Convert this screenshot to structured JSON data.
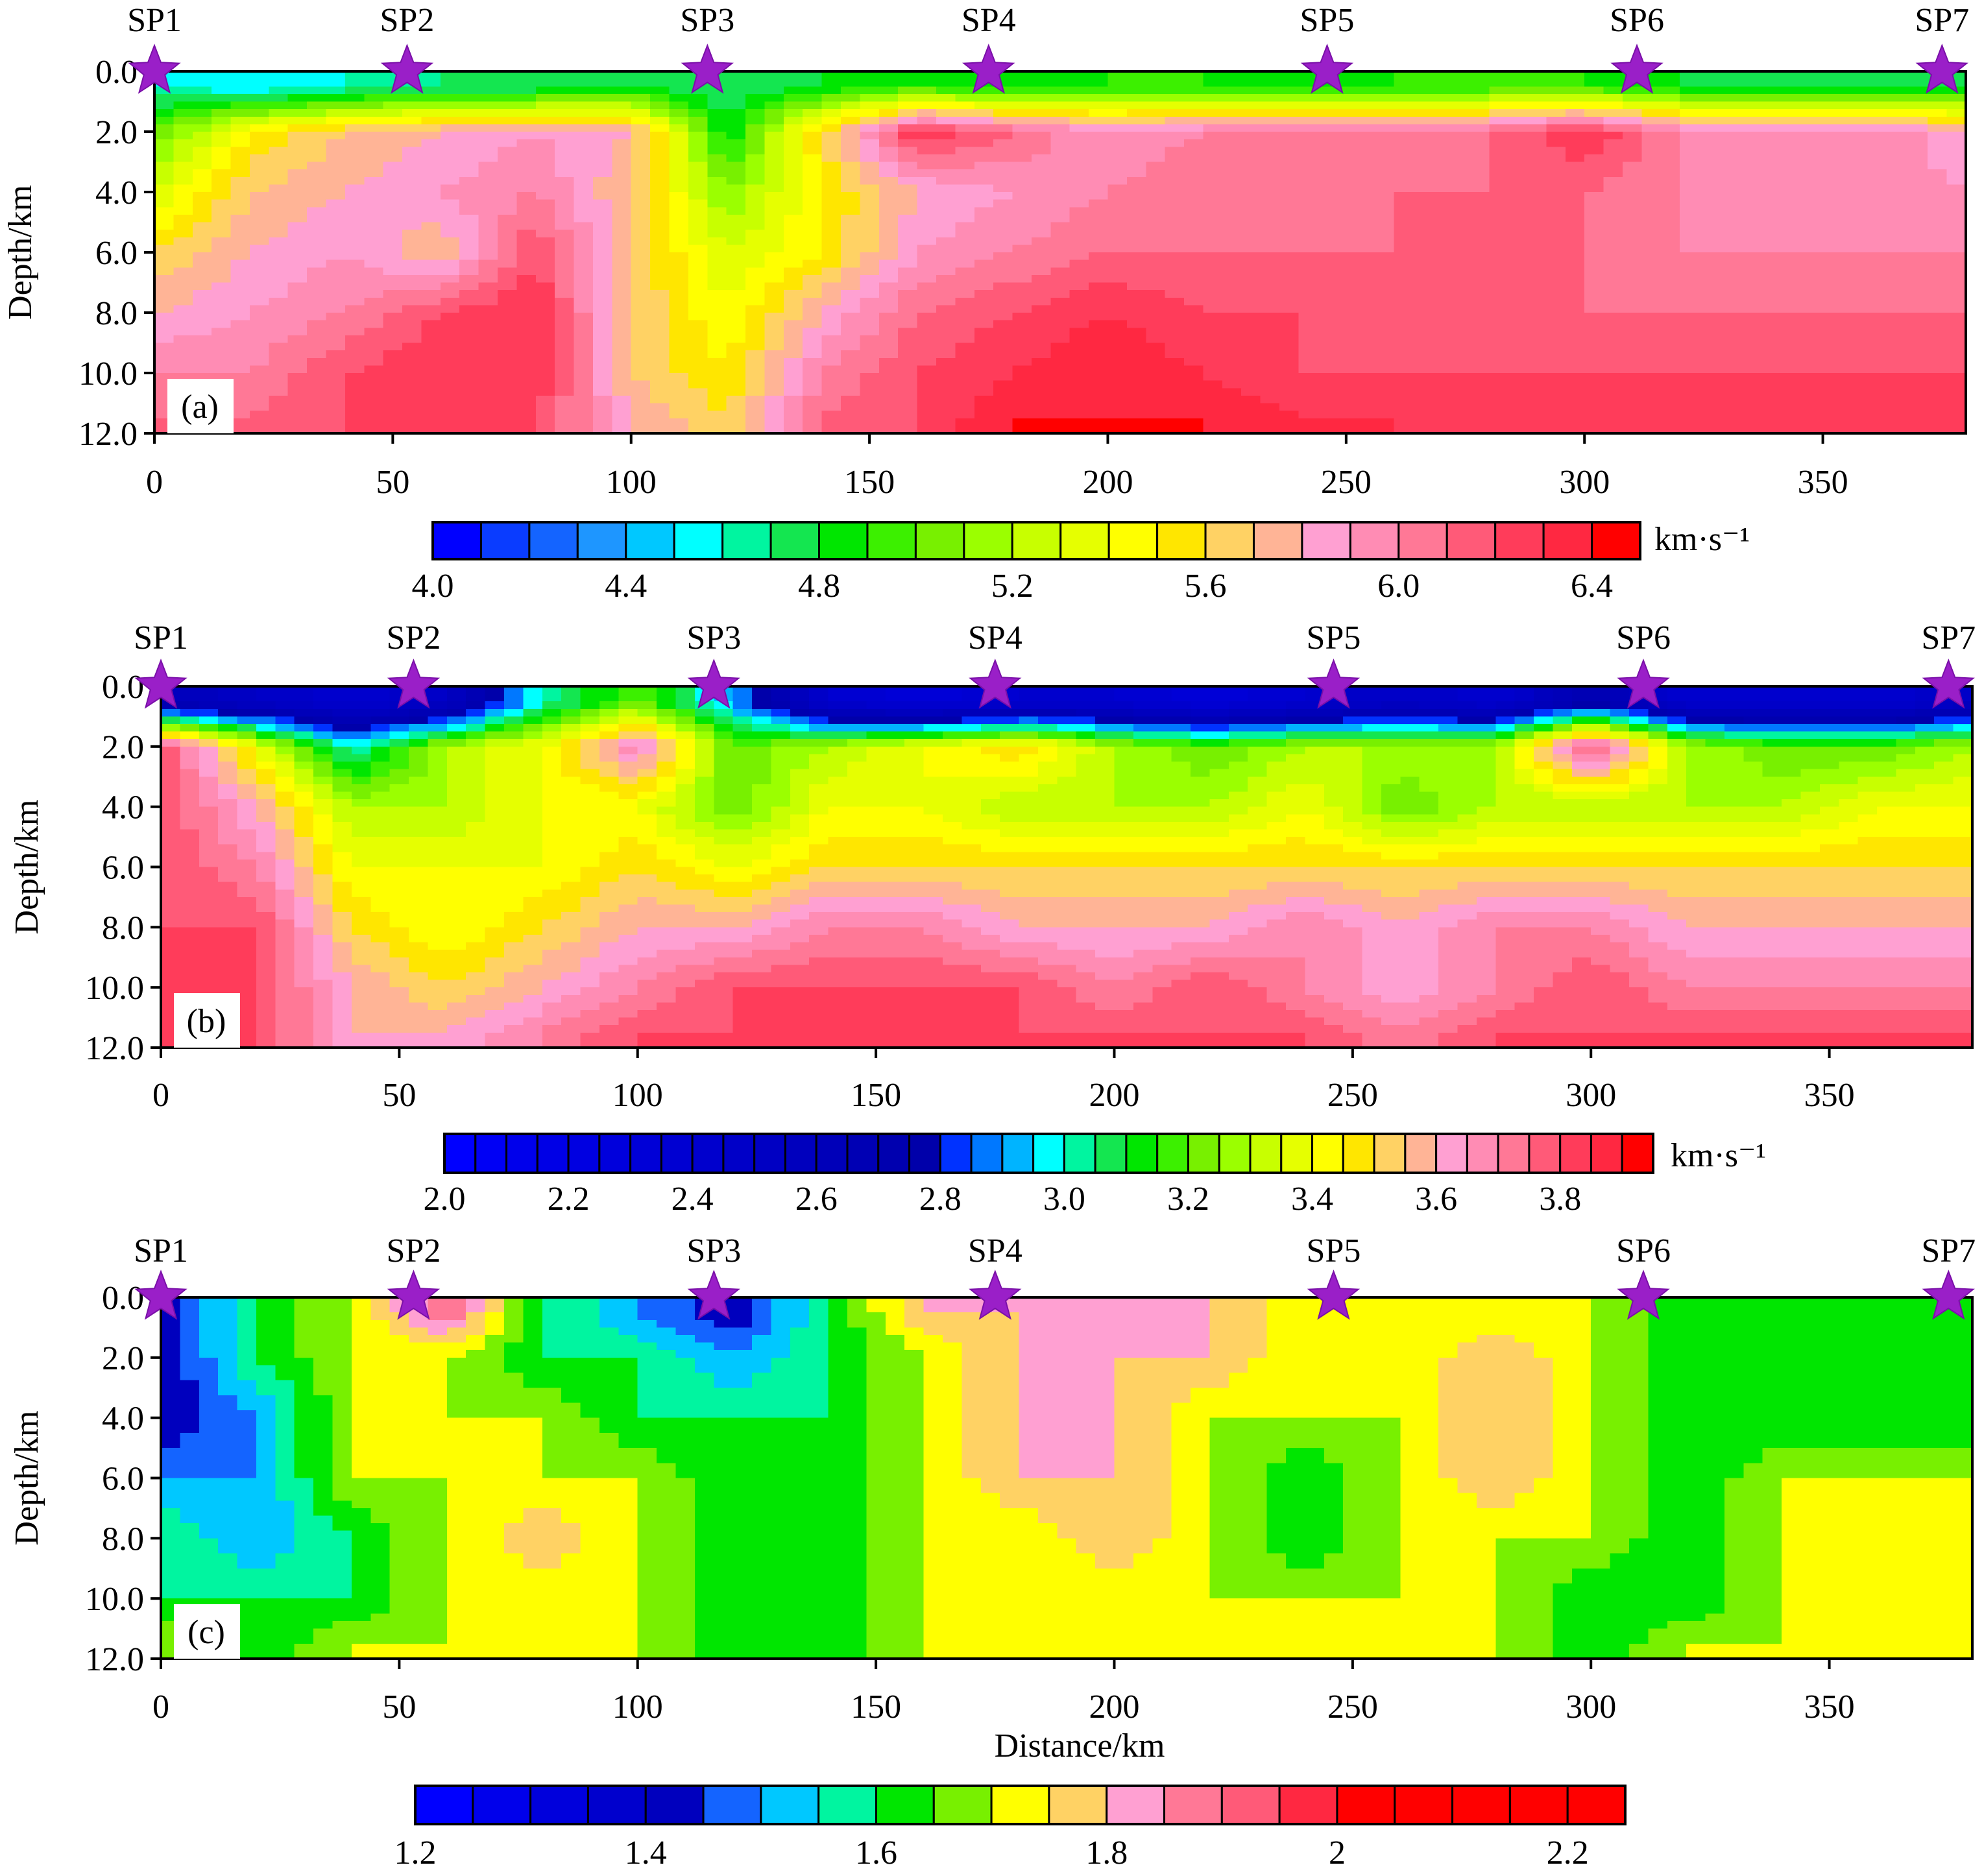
{
  "chart_data": [
    {
      "type": "heatmap",
      "panel_label": "(a)",
      "ylabel": "Depth/km",
      "x_ticks": [
        "0",
        "50",
        "100",
        "150",
        "200",
        "250",
        "300",
        "350"
      ],
      "y_ticks": [
        "0.0",
        "2.0",
        "4.0",
        "6.0",
        "8.0",
        "10.0",
        "12.0"
      ],
      "xlim": [
        0,
        380
      ],
      "ylim": [
        0,
        12
      ],
      "shot_points": [
        {
          "name": "SP1",
          "x": 0
        },
        {
          "name": "SP2",
          "x": 53
        },
        {
          "name": "SP3",
          "x": 116
        },
        {
          "name": "SP4",
          "x": 175
        },
        {
          "name": "SP5",
          "x": 246
        },
        {
          "name": "SP6",
          "x": 311
        },
        {
          "name": "SP7",
          "x": 375
        }
      ],
      "colorbar": {
        "min": 4.0,
        "max": 6.5,
        "step": 0.1,
        "tick_labels": [
          "4.0",
          "4.4",
          "4.8",
          "5.2",
          "5.6",
          "6.0",
          "6.4"
        ],
        "unit": "km·s⁻¹",
        "colors": [
          "#0000ff",
          "#0a3cff",
          "#1464ff",
          "#1e96ff",
          "#00c8ff",
          "#00ffff",
          "#00f5a0",
          "#14e650",
          "#00e600",
          "#3cf000",
          "#78f000",
          "#9bff00",
          "#c8ff00",
          "#e6ff00",
          "#ffff00",
          "#ffe600",
          "#ffd264",
          "#ffb496",
          "#ffa0d2",
          "#ff8cb4",
          "#ff7896",
          "#ff5a78",
          "#ff3c5a",
          "#ff2841",
          "#ff0000"
        ]
      },
      "depth_rows": [
        0.5,
        2,
        4,
        6,
        8,
        10,
        11.5
      ],
      "x_nodes": [
        0,
        20,
        40,
        60,
        80,
        100,
        120,
        140,
        160,
        180,
        200,
        220,
        240,
        260,
        280,
        300,
        320,
        340,
        360,
        380
      ],
      "velocity_grid": [
        [
          4.6,
          4.5,
          4.6,
          4.7,
          4.7,
          4.8,
          4.7,
          4.8,
          4.9,
          4.8,
          4.9,
          4.9,
          4.8,
          4.9,
          4.9,
          4.9,
          4.8,
          4.7,
          4.7,
          4.8
        ],
        [
          5.0,
          5.5,
          5.7,
          5.8,
          5.9,
          5.8,
          4.8,
          5.6,
          6.3,
          6.1,
          5.9,
          6.0,
          6.1,
          6.0,
          6.1,
          6.3,
          6.0,
          5.9,
          6.0,
          5.8
        ],
        [
          5.3,
          5.7,
          5.8,
          5.9,
          6.0,
          5.7,
          5.1,
          5.5,
          5.8,
          5.9,
          6.0,
          6.1,
          6.0,
          6.1,
          6.1,
          6.1,
          6.0,
          5.9,
          6.0,
          5.9
        ],
        [
          5.6,
          5.8,
          5.9,
          5.7,
          6.2,
          5.7,
          5.3,
          5.5,
          5.9,
          6.0,
          6.1,
          6.1,
          6.1,
          6.1,
          6.2,
          6.1,
          6.0,
          6.0,
          6.0,
          6.0
        ],
        [
          5.8,
          5.9,
          6.0,
          6.2,
          6.3,
          5.7,
          5.4,
          5.8,
          6.1,
          6.2,
          6.3,
          6.2,
          6.2,
          6.1,
          6.2,
          6.1,
          6.1,
          6.1,
          6.1,
          6.1
        ],
        [
          6.0,
          6.0,
          6.2,
          6.3,
          6.3,
          5.7,
          5.5,
          6.0,
          6.2,
          6.3,
          6.4,
          6.3,
          6.2,
          6.2,
          6.2,
          6.2,
          6.2,
          6.2,
          6.2,
          6.2
        ],
        [
          6.1,
          6.1,
          6.2,
          6.3,
          6.2,
          5.8,
          5.6,
          6.1,
          6.2,
          6.4,
          6.4,
          6.4,
          6.3,
          6.3,
          6.2,
          6.3,
          6.2,
          6.2,
          6.2,
          6.2
        ]
      ]
    },
    {
      "type": "heatmap",
      "panel_label": "(b)",
      "ylabel": "Depth/km",
      "x_ticks": [
        "0",
        "50",
        "100",
        "150",
        "200",
        "250",
        "300",
        "350"
      ],
      "y_ticks": [
        "0.0",
        "2.0",
        "4.0",
        "6.0",
        "8.0",
        "10.0",
        "12.0"
      ],
      "xlim": [
        0,
        380
      ],
      "ylim": [
        0,
        12
      ],
      "shot_points": [
        {
          "name": "SP1",
          "x": 0
        },
        {
          "name": "SP2",
          "x": 53
        },
        {
          "name": "SP3",
          "x": 116
        },
        {
          "name": "SP4",
          "x": 175
        },
        {
          "name": "SP5",
          "x": 246
        },
        {
          "name": "SP6",
          "x": 311
        },
        {
          "name": "SP7",
          "x": 375
        }
      ],
      "colorbar": {
        "min": 2.0,
        "max": 3.9,
        "step": 0.05,
        "tick_labels": [
          "2.0",
          "2.2",
          "2.4",
          "2.6",
          "2.8",
          "3.0",
          "3.2",
          "3.4",
          "3.6",
          "3.8"
        ],
        "unit": "km·s⁻¹",
        "colors": [
          "#0000ff",
          "#0000f5",
          "#0000eb",
          "#0000e6",
          "#0000e1",
          "#0000dc",
          "#0000d7",
          "#0000d2",
          "#0000cd",
          "#0000c8",
          "#0000c3",
          "#0000be",
          "#0000b9",
          "#0000b4",
          "#0000af",
          "#0000aa",
          "#0032ff",
          "#0078ff",
          "#00b4ff",
          "#00ffff",
          "#00f5a0",
          "#14e650",
          "#00e600",
          "#3cf000",
          "#78f000",
          "#9bff00",
          "#c8ff00",
          "#e6ff00",
          "#ffff00",
          "#ffe600",
          "#ffd264",
          "#ffb496",
          "#ffa0d2",
          "#ff8cb4",
          "#ff7896",
          "#ff5a78",
          "#ff3c5a",
          "#ff2841",
          "#ff0000"
        ]
      },
      "depth_rows": [
        0.5,
        2,
        4,
        6,
        8,
        10,
        11.5
      ],
      "x_nodes": [
        0,
        20,
        40,
        60,
        80,
        100,
        120,
        140,
        160,
        180,
        200,
        220,
        240,
        260,
        280,
        300,
        320,
        340,
        360,
        380
      ],
      "velocity_grid": [
        [
          2.6,
          2.5,
          2.4,
          2.5,
          3.0,
          3.2,
          2.9,
          2.4,
          2.3,
          2.4,
          2.4,
          2.3,
          2.4,
          2.5,
          2.4,
          2.7,
          2.4,
          2.4,
          2.4,
          2.5
        ],
        [
          3.8,
          3.4,
          3.0,
          3.3,
          3.4,
          3.7,
          3.2,
          3.3,
          3.4,
          3.5,
          3.3,
          3.2,
          3.3,
          3.3,
          3.3,
          3.8,
          3.3,
          3.2,
          3.2,
          3.3
        ],
        [
          3.8,
          3.6,
          3.3,
          3.3,
          3.4,
          3.4,
          3.2,
          3.4,
          3.4,
          3.3,
          3.3,
          3.3,
          3.4,
          3.2,
          3.3,
          3.3,
          3.3,
          3.3,
          3.4,
          3.4
        ],
        [
          3.8,
          3.7,
          3.4,
          3.4,
          3.4,
          3.5,
          3.4,
          3.5,
          3.5,
          3.5,
          3.5,
          3.5,
          3.5,
          3.5,
          3.5,
          3.5,
          3.5,
          3.5,
          3.5,
          3.5
        ],
        [
          3.8,
          3.8,
          3.5,
          3.4,
          3.5,
          3.6,
          3.6,
          3.7,
          3.7,
          3.6,
          3.6,
          3.6,
          3.7,
          3.6,
          3.7,
          3.7,
          3.6,
          3.6,
          3.6,
          3.6
        ],
        [
          3.8,
          3.8,
          3.6,
          3.5,
          3.6,
          3.7,
          3.8,
          3.8,
          3.8,
          3.8,
          3.7,
          3.8,
          3.7,
          3.6,
          3.7,
          3.8,
          3.7,
          3.7,
          3.7,
          3.7
        ],
        [
          3.8,
          3.8,
          3.6,
          3.6,
          3.7,
          3.8,
          3.8,
          3.8,
          3.8,
          3.8,
          3.8,
          3.8,
          3.8,
          3.7,
          3.8,
          3.8,
          3.8,
          3.8,
          3.8,
          3.8
        ]
      ]
    },
    {
      "type": "heatmap",
      "panel_label": "(c)",
      "xlabel": "Distance/km",
      "ylabel": "Depth/km",
      "x_ticks": [
        "0",
        "50",
        "100",
        "150",
        "200",
        "250",
        "300",
        "350"
      ],
      "y_ticks": [
        "0.0",
        "2.0",
        "4.0",
        "6.0",
        "8.0",
        "10.0",
        "12.0"
      ],
      "xlim": [
        0,
        380
      ],
      "ylim": [
        0,
        12
      ],
      "shot_points": [
        {
          "name": "SP1",
          "x": 0
        },
        {
          "name": "SP2",
          "x": 53
        },
        {
          "name": "SP3",
          "x": 116
        },
        {
          "name": "SP4",
          "x": 175
        },
        {
          "name": "SP5",
          "x": 246
        },
        {
          "name": "SP6",
          "x": 311
        },
        {
          "name": "SP7",
          "x": 375
        }
      ],
      "colorbar": {
        "min": 1.2,
        "max": 2.25,
        "step": 0.05,
        "tick_labels": [
          "1.2",
          "1.4",
          "1.6",
          "1.8",
          "2",
          "2.2"
        ],
        "unit": "",
        "colors": [
          "#0000ff",
          "#0000eb",
          "#0000dc",
          "#0000cd",
          "#0000be",
          "#1464ff",
          "#00c8ff",
          "#00f5a0",
          "#00e600",
          "#78f000",
          "#ffff00",
          "#ffd264",
          "#ffa0d2",
          "#ff7896",
          "#ff5a78",
          "#ff2841",
          "#ff0000",
          "#ff0000",
          "#ff0000",
          "#ff0000",
          "#ff0000"
        ]
      },
      "depth_rows": [
        0.5,
        2,
        4,
        6,
        8,
        10,
        11.5
      ],
      "x_nodes": [
        0,
        20,
        40,
        60,
        80,
        100,
        120,
        140,
        160,
        180,
        200,
        220,
        240,
        260,
        280,
        300,
        320,
        340,
        360,
        380
      ],
      "velocity_grid": [
        [
          1.4,
          1.6,
          1.7,
          1.9,
          1.6,
          1.5,
          1.4,
          1.6,
          1.8,
          1.8,
          1.8,
          1.8,
          1.7,
          1.7,
          1.7,
          1.7,
          1.6,
          1.6,
          1.6,
          1.6
        ],
        [
          1.4,
          1.6,
          1.7,
          1.7,
          1.6,
          1.6,
          1.5,
          1.6,
          1.7,
          1.8,
          1.8,
          1.8,
          1.7,
          1.7,
          1.8,
          1.7,
          1.6,
          1.6,
          1.6,
          1.6
        ],
        [
          1.4,
          1.5,
          1.7,
          1.7,
          1.7,
          1.6,
          1.6,
          1.6,
          1.7,
          1.8,
          1.8,
          1.7,
          1.7,
          1.7,
          1.8,
          1.7,
          1.6,
          1.6,
          1.6,
          1.6
        ],
        [
          1.5,
          1.5,
          1.7,
          1.7,
          1.7,
          1.7,
          1.6,
          1.6,
          1.7,
          1.8,
          1.8,
          1.7,
          1.6,
          1.7,
          1.8,
          1.7,
          1.6,
          1.7,
          1.7,
          1.7
        ],
        [
          1.6,
          1.5,
          1.6,
          1.7,
          1.8,
          1.7,
          1.6,
          1.6,
          1.7,
          1.7,
          1.8,
          1.7,
          1.6,
          1.7,
          1.7,
          1.7,
          1.6,
          1.7,
          1.7,
          1.7
        ],
        [
          1.6,
          1.6,
          1.6,
          1.7,
          1.7,
          1.7,
          1.6,
          1.6,
          1.7,
          1.7,
          1.7,
          1.7,
          1.7,
          1.7,
          1.7,
          1.6,
          1.6,
          1.7,
          1.7,
          1.7
        ],
        [
          1.7,
          1.6,
          1.7,
          1.7,
          1.7,
          1.7,
          1.6,
          1.6,
          1.7,
          1.7,
          1.7,
          1.7,
          1.7,
          1.7,
          1.7,
          1.6,
          1.7,
          1.7,
          1.7,
          1.7
        ]
      ]
    }
  ]
}
